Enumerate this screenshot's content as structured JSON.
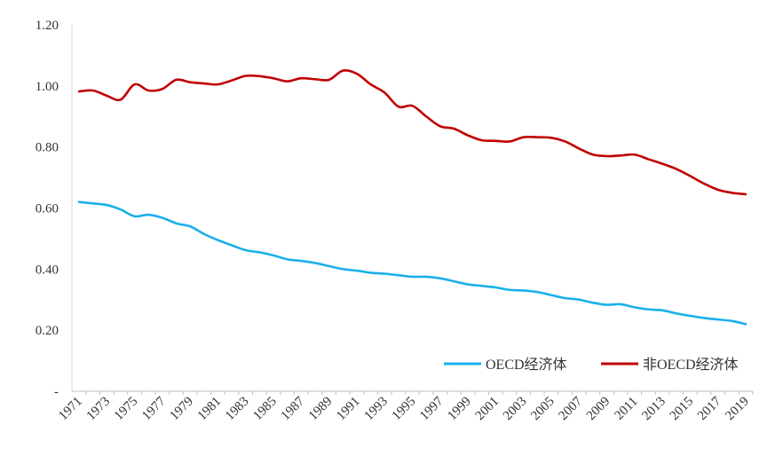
{
  "chart_data": {
    "type": "line",
    "title": "",
    "xlabel": "",
    "ylabel": "",
    "ylim": [
      0,
      1.2
    ],
    "ytick_labels": [
      "-",
      "0.20",
      "0.40",
      "0.60",
      "0.80",
      "1.00",
      "1.20"
    ],
    "x": [
      1971,
      1972,
      1973,
      1974,
      1975,
      1976,
      1977,
      1978,
      1979,
      1980,
      1981,
      1982,
      1983,
      1984,
      1985,
      1986,
      1987,
      1988,
      1989,
      1990,
      1991,
      1992,
      1993,
      1994,
      1995,
      1996,
      1997,
      1998,
      1999,
      2000,
      2001,
      2002,
      2003,
      2004,
      2005,
      2006,
      2007,
      2008,
      2009,
      2010,
      2011,
      2012,
      2013,
      2014,
      2015,
      2016,
      2017,
      2018,
      2019
    ],
    "xtick_labels": [
      "1971",
      "1973",
      "1975",
      "1977",
      "1979",
      "1981",
      "1983",
      "1985",
      "1987",
      "1989",
      "1991",
      "1993",
      "1995",
      "1997",
      "1999",
      "2001",
      "2003",
      "2005",
      "2007",
      "2009",
      "2011",
      "2013",
      "2015",
      "2017",
      "2019"
    ],
    "series": [
      {
        "name": "OECD经济体",
        "color": "#1ab0e8",
        "values": [
          0.62,
          0.615,
          0.61,
          0.595,
          0.573,
          0.578,
          0.568,
          0.55,
          0.54,
          0.515,
          0.495,
          0.478,
          0.462,
          0.455,
          0.445,
          0.432,
          0.427,
          0.42,
          0.41,
          0.4,
          0.395,
          0.388,
          0.385,
          0.38,
          0.375,
          0.375,
          0.37,
          0.36,
          0.35,
          0.345,
          0.34,
          0.332,
          0.33,
          0.325,
          0.315,
          0.305,
          0.3,
          0.29,
          0.283,
          0.285,
          0.275,
          0.268,
          0.265,
          0.255,
          0.247,
          0.24,
          0.235,
          0.23,
          0.22
        ]
      },
      {
        "name": "非OECD经济体",
        "color": "#c00000",
        "values": [
          0.982,
          0.985,
          0.968,
          0.955,
          1.005,
          0.985,
          0.99,
          1.02,
          1.012,
          1.008,
          1.005,
          1.018,
          1.033,
          1.032,
          1.025,
          1.015,
          1.025,
          1.022,
          1.02,
          1.05,
          1.04,
          1.005,
          0.978,
          0.932,
          0.935,
          0.9,
          0.868,
          0.86,
          0.838,
          0.822,
          0.82,
          0.818,
          0.832,
          0.832,
          0.83,
          0.818,
          0.795,
          0.775,
          0.77,
          0.772,
          0.775,
          0.76,
          0.745,
          0.728,
          0.705,
          0.68,
          0.66,
          0.65,
          0.645
        ]
      }
    ],
    "legend": "bottom-right"
  }
}
